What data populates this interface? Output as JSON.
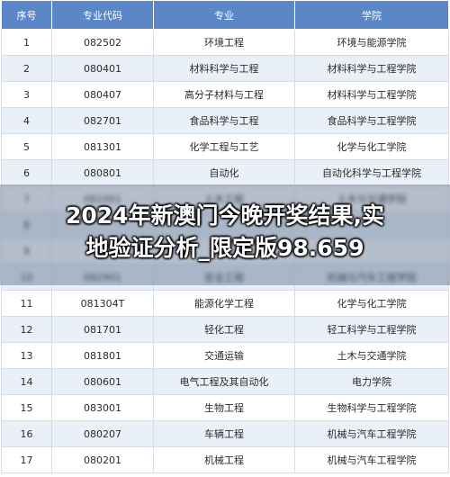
{
  "table": {
    "headers": [
      "序号",
      "专业代码",
      "专业",
      "学院"
    ],
    "rows": [
      [
        "1",
        "082502",
        "环境工程",
        "环境与能源学院"
      ],
      [
        "2",
        "080401",
        "材料科学与工程",
        "材料科学与工程学院"
      ],
      [
        "3",
        "080407",
        "高分子材料与工程",
        "材料科学与工程学院"
      ],
      [
        "4",
        "082701",
        "食品科学与工程",
        "食品科学与工程学院"
      ],
      [
        "5",
        "081301",
        "化学工程与工艺",
        "化学与化工学院"
      ],
      [
        "6",
        "080801",
        "自动化",
        "自动化科学与工程学院"
      ],
      [
        "7",
        "081001",
        "土木工程",
        "土木与交通学院"
      ],
      [
        "8",
        "",
        "",
        ""
      ],
      [
        "9",
        "",
        "软",
        ""
      ],
      [
        "10",
        "082901",
        "安全工程",
        "机械与汽车工程学院"
      ],
      [
        "11",
        "081304T",
        "能源化学工程",
        "化学与化工学院"
      ],
      [
        "12",
        "081701",
        "轻化工程",
        "轻工科学与工程学院"
      ],
      [
        "13",
        "081801",
        "交通运输",
        "土木与交通学院"
      ],
      [
        "14",
        "080601",
        "电气工程及其自动化",
        "电力学院"
      ],
      [
        "15",
        "083001",
        "生物工程",
        "生物科学与工程学院"
      ],
      [
        "16",
        "080207",
        "车辆工程",
        "机械与汽车工程学院"
      ],
      [
        "17",
        "080201",
        "机械工程",
        "机械与汽车工程学院"
      ]
    ]
  },
  "overlay": {
    "headline_line1": "2024年新澳门今晚开奖结果,实",
    "headline_line2": "地验证分析_限定版98.659"
  }
}
